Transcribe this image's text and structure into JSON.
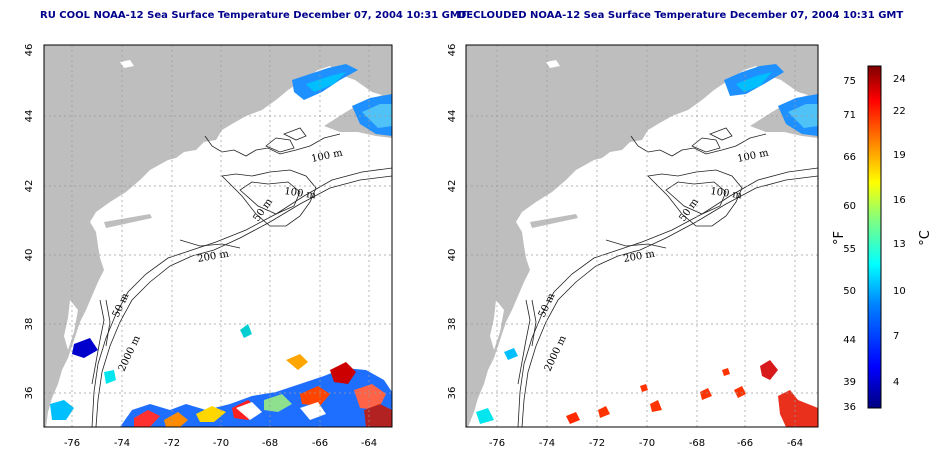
{
  "titles": {
    "left": "RU COOL NOAA-12 Sea Surface Temperature December 07, 2004 10:31 GMT",
    "right": "DECLOUDED NOAA-12 Sea Surface Temperature December 07, 2004 10:31 GMT"
  },
  "map_axes": {
    "lat_ticks": [
      "36",
      "38",
      "40",
      "42",
      "44",
      "46"
    ],
    "lon_ticks": [
      "-76",
      "-74",
      "-72",
      "-70",
      "-68",
      "-66",
      "-64"
    ]
  },
  "isobath_labels": [
    "100 m",
    "100 m",
    "50 m",
    "200 m",
    "50 m",
    "2000 m"
  ],
  "colorbar": {
    "fahrenheit_label": "°F",
    "celsius_label": "°C",
    "fahrenheit_ticks": [
      "75",
      "71",
      "66",
      "60",
      "55",
      "50",
      "44",
      "39",
      "36"
    ],
    "celsius_ticks": [
      "24",
      "22",
      "19",
      "16",
      "13",
      "10",
      "7",
      "4"
    ]
  },
  "colors": {
    "land": "#bebebe",
    "ocean": "#ffffff",
    "grid": "#9a9a9a",
    "title": "#00008b",
    "scale": [
      "#00007f",
      "#0000ff",
      "#0080ff",
      "#00ffff",
      "#80ff80",
      "#ffff00",
      "#ff8000",
      "#ff0000",
      "#7f0000"
    ]
  }
}
